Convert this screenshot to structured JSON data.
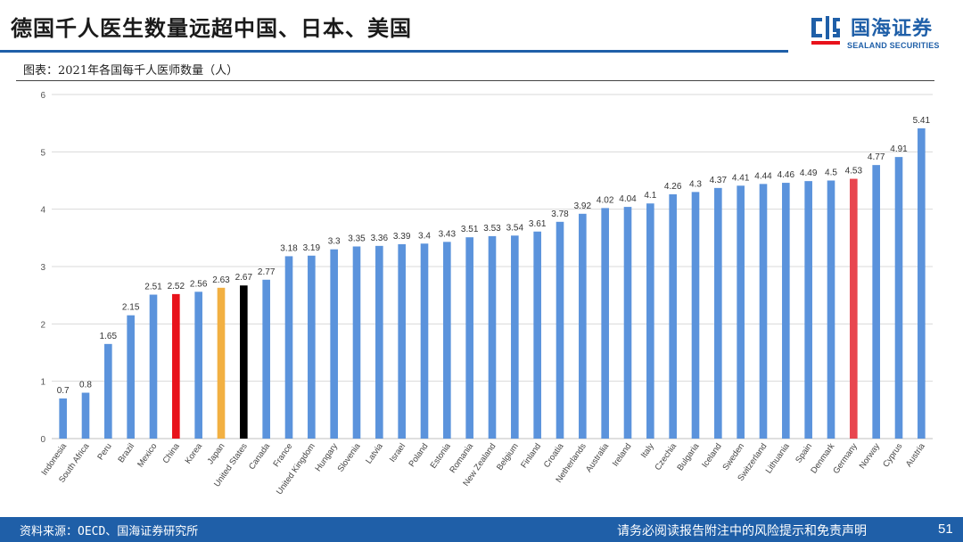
{
  "header": {
    "title": "德国千人医生数量远超中国、日本、美国",
    "logo_cn": "国海证券",
    "logo_en": "SEALAND SECURITIES"
  },
  "caption": "图表：2021年各国每千人医师数量（人）",
  "footer": {
    "source": "资料来源：OECD、国海证券研究所",
    "disclaimer": "请务必阅读报告附注中的风险提示和免责声明",
    "page": "51"
  },
  "colors": {
    "brand": "#1f5fa8",
    "bar_default": "#5b93dc",
    "bar_china": "#e8121b",
    "bar_japan": "#f2b042",
    "bar_us": "#000000",
    "bar_germany": "#e8464f"
  },
  "chart_data": {
    "type": "bar",
    "title": "2021年各国每千人医师数量（人）",
    "xlabel": "",
    "ylabel": "",
    "ylim": [
      0,
      6
    ],
    "yticks": [
      0,
      1,
      2,
      3,
      4,
      5,
      6
    ],
    "grid": true,
    "categories": [
      "Indonesia",
      "South Africa",
      "Peru",
      "Brazil",
      "Mexico",
      "China",
      "Korea",
      "Japan",
      "United States",
      "Canada",
      "France",
      "United Kingdom",
      "Hungary",
      "Slovenia",
      "Latvia",
      "Israel",
      "Poland",
      "Estonia",
      "Romania",
      "New Zealand",
      "Belgium",
      "Finland",
      "Croatia",
      "Netherlands",
      "Australia",
      "Ireland",
      "Italy",
      "Czechia",
      "Bulgaria",
      "Iceland",
      "Sweden",
      "Switzerland",
      "Lithuania",
      "Spain",
      "Denmark",
      "Germany",
      "Norway",
      "Cyprus",
      "Austria"
    ],
    "values": [
      0.7,
      0.8,
      1.65,
      2.15,
      2.51,
      2.52,
      2.56,
      2.63,
      2.67,
      2.77,
      3.18,
      3.19,
      3.3,
      3.35,
      3.36,
      3.39,
      3.4,
      3.43,
      3.51,
      3.53,
      3.54,
      3.61,
      3.78,
      3.92,
      4.02,
      4.04,
      4.1,
      4.26,
      4.3,
      4.37,
      4.41,
      4.44,
      4.46,
      4.49,
      4.5,
      4.53,
      4.77,
      4.91,
      5.41
    ],
    "value_labels": [
      "0.7",
      "0.8",
      "1.65",
      "2.15",
      "2.51",
      "2.52",
      "2.56",
      "2.63",
      "2.67",
      "2.77",
      "3.18",
      "3.19",
      "3.3",
      "3.35",
      "3.36",
      "3.39",
      "3.4",
      "3.43",
      "3.51",
      "3.53",
      "3.54",
      "3.61",
      "3.78",
      "3.92",
      "4.02",
      "4.04",
      "4.1",
      "4.26",
      "4.3",
      "4.37",
      "4.41",
      "4.44",
      "4.46",
      "4.49",
      "4.5",
      "4.53",
      "4.77",
      "4.91",
      "5.41"
    ],
    "highlights": {
      "China": "bar_china",
      "Japan": "bar_japan",
      "United States": "bar_us",
      "Germany": "bar_germany"
    }
  }
}
